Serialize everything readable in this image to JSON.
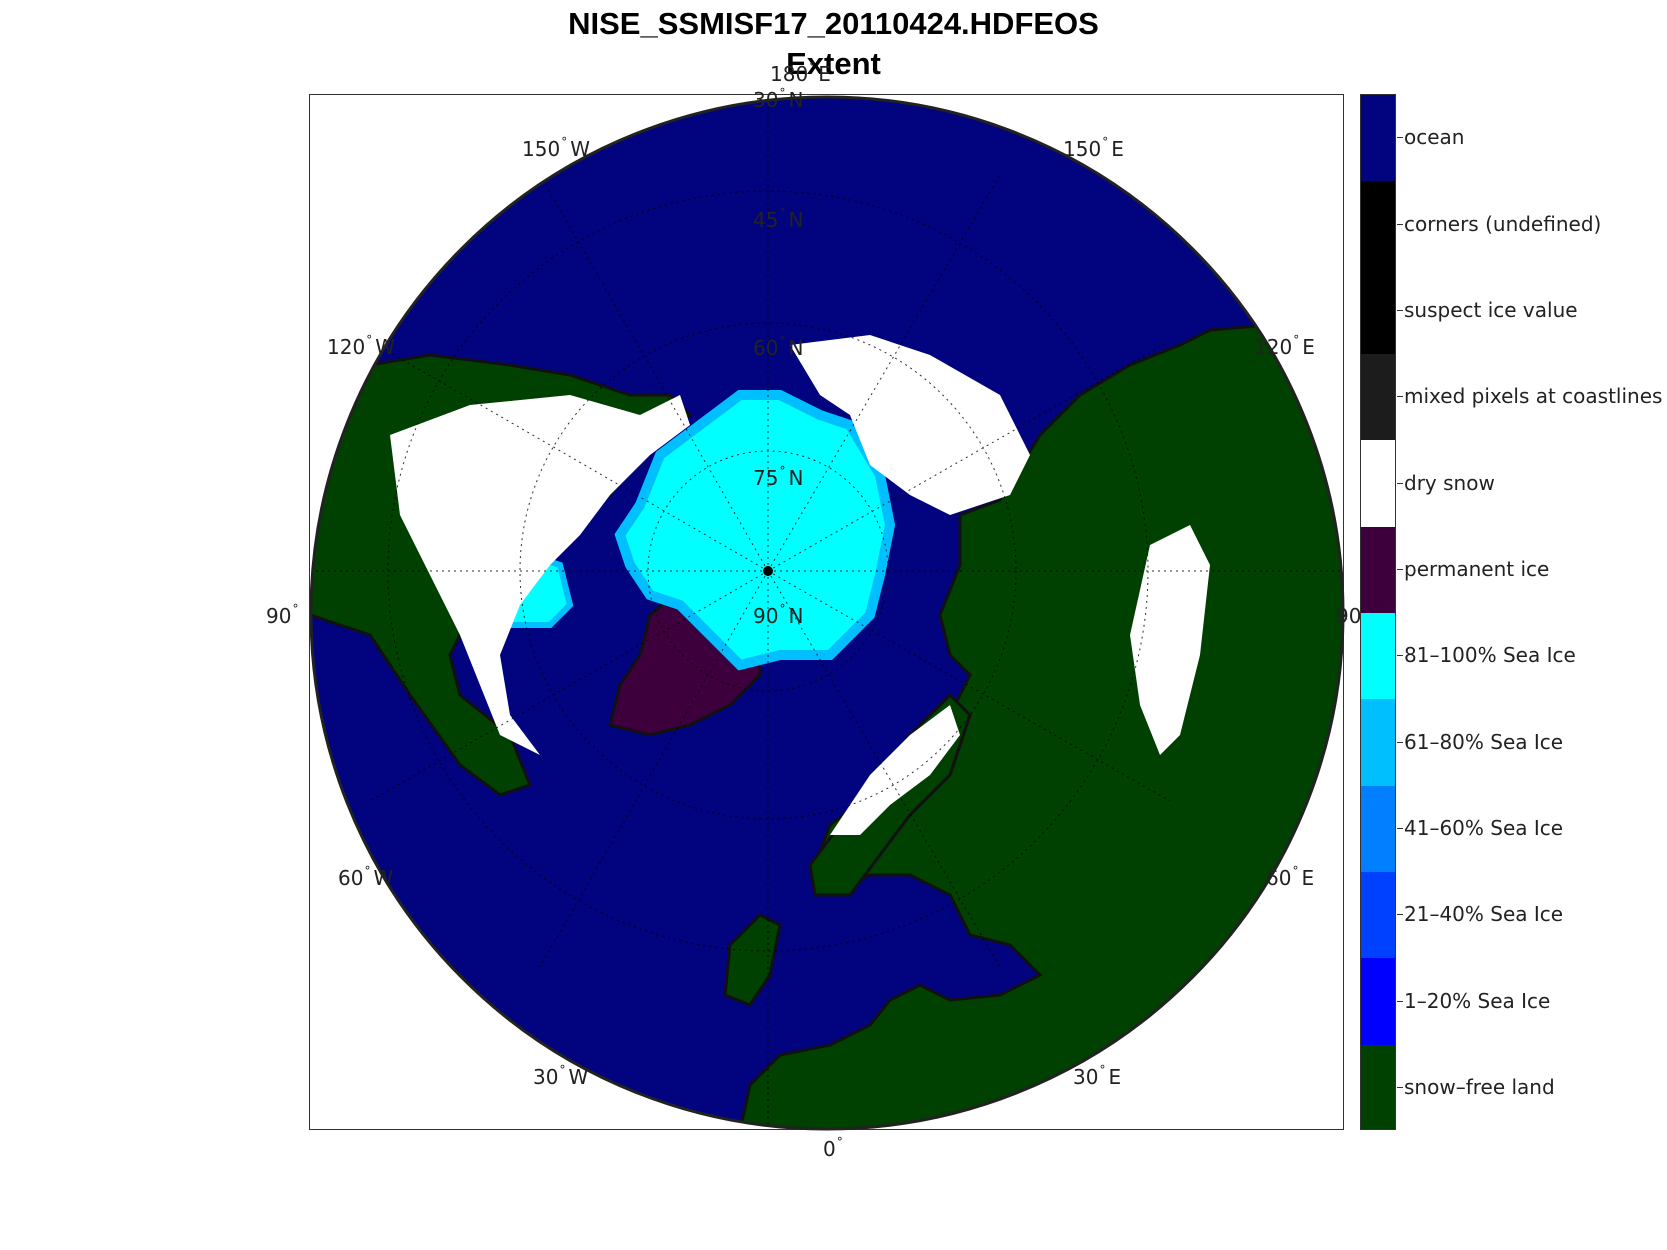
{
  "title_line1": "NISE_SSMISF17_20110424.HDFEOS",
  "title_line2": "Extent",
  "lon_labels": [
    {
      "num": "180",
      "hemi": "E"
    },
    {
      "num": "150",
      "hemi": "E"
    },
    {
      "num": "120",
      "hemi": "E"
    },
    {
      "num": "90",
      "hemi": ""
    },
    {
      "num": "60",
      "hemi": "E"
    },
    {
      "num": "30",
      "hemi": "E"
    },
    {
      "num": "0",
      "hemi": ""
    },
    {
      "num": "30",
      "hemi": "W"
    },
    {
      "num": "60",
      "hemi": "W"
    },
    {
      "num": "90",
      "hemi": ""
    },
    {
      "num": "120",
      "hemi": "W"
    },
    {
      "num": "150",
      "hemi": "W"
    }
  ],
  "lat_labels": [
    {
      "num": "30",
      "hemi": "N"
    },
    {
      "num": "45",
      "hemi": "N"
    },
    {
      "num": "60",
      "hemi": "N"
    },
    {
      "num": "75",
      "hemi": "N"
    },
    {
      "num": "90",
      "hemi": "N"
    }
  ],
  "legend": [
    {
      "label": "ocean",
      "color": "#02037f"
    },
    {
      "label": "corners (undefined)",
      "color": "#000000"
    },
    {
      "label": "suspect ice value",
      "color": "#000000"
    },
    {
      "label": "mixed pixels at coastlines",
      "color": "#1c1c1c"
    },
    {
      "label": "dry snow",
      "color": "#ffffff"
    },
    {
      "label": "permanent ice",
      "color": "#3d003d"
    },
    {
      "label": "81–100% Sea Ice",
      "color": "#00ffff"
    },
    {
      "label": "61–80% Sea Ice",
      "color": "#00bfff"
    },
    {
      "label": "41–60% Sea Ice",
      "color": "#0080ff"
    },
    {
      "label": "21–40% Sea Ice",
      "color": "#0040ff"
    },
    {
      "label": "1–20% Sea Ice",
      "color": "#0000ff"
    },
    {
      "label": "snow–free land",
      "color": "#004000"
    }
  ]
}
